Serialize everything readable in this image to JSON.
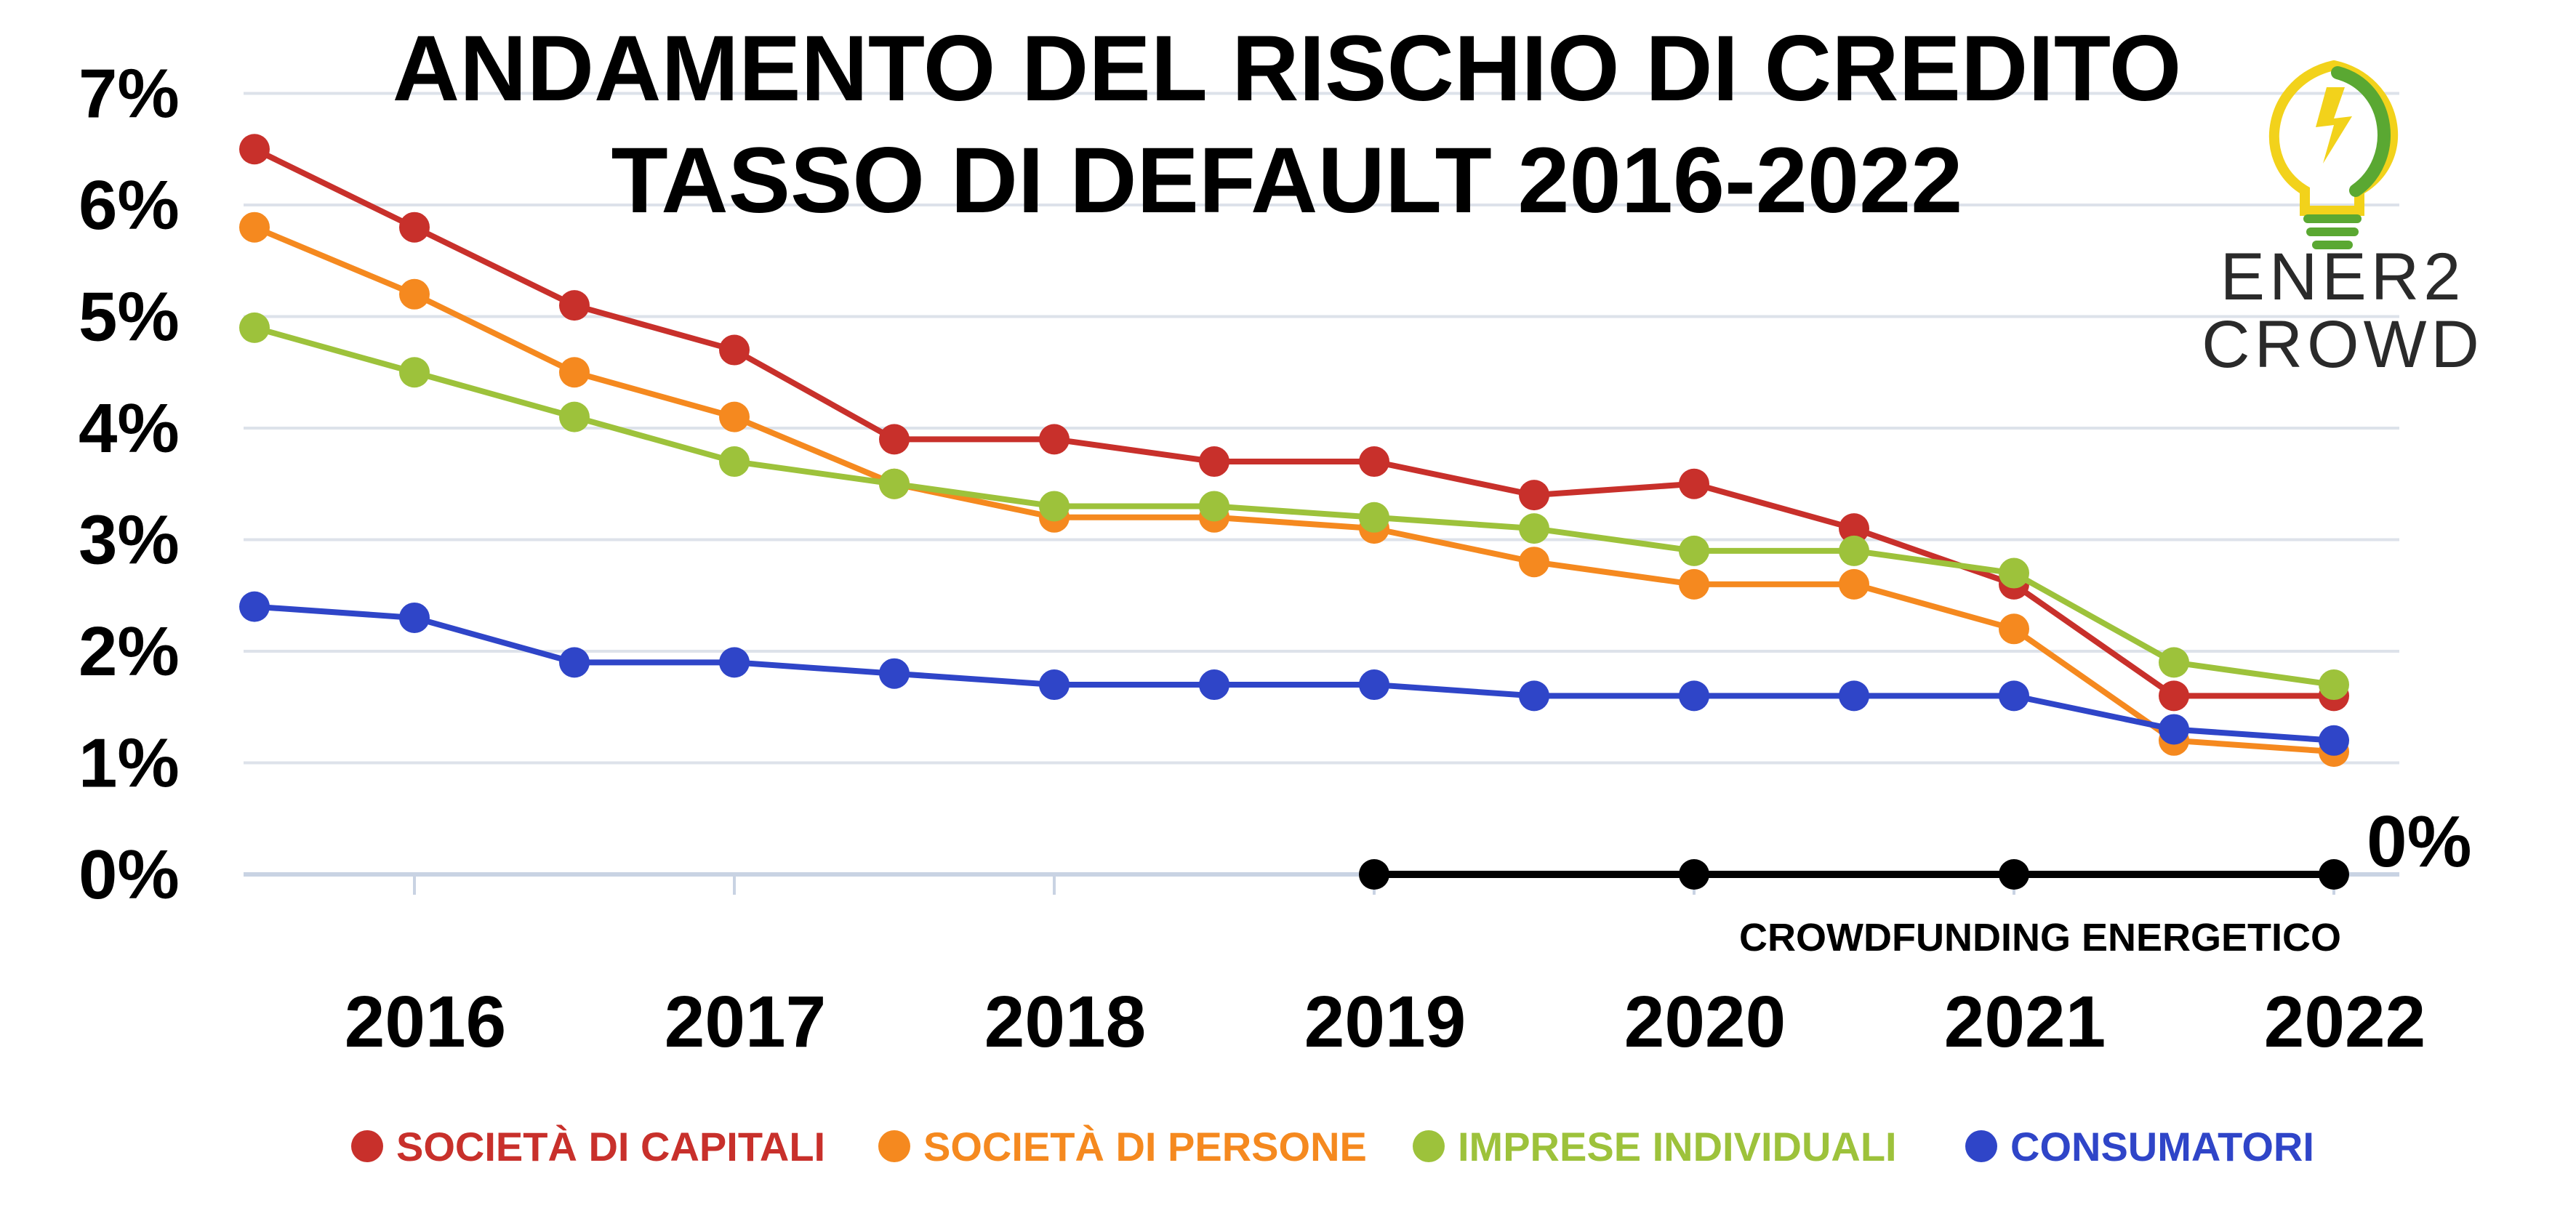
{
  "chart_data": {
    "type": "line",
    "title_line1": "ANDAMENTO DEL RISCHIO DI CREDITO",
    "title_line2": "TASSO DI DEFAULT 2016-2022",
    "y_ticks": [
      "0%",
      "1%",
      "2%",
      "3%",
      "4%",
      "5%",
      "6%",
      "7%"
    ],
    "ylim": [
      0,
      7
    ],
    "x_ticks": [
      "2016",
      "2017",
      "2018",
      "2019",
      "2020",
      "2021",
      "2022"
    ],
    "x": [
      2015.5,
      2016,
      2016.5,
      2017,
      2017.5,
      2018,
      2018.5,
      2019,
      2019.5,
      2020,
      2020.5,
      2021,
      2021.5,
      2022
    ],
    "grid": true,
    "legend_position": "bottom",
    "series": [
      {
        "name": "SOCIETÀ DI CAPITALI",
        "color": "#c8302b",
        "values": [
          6.5,
          5.8,
          5.1,
          4.7,
          3.9,
          3.9,
          3.7,
          3.7,
          3.4,
          3.5,
          3.1,
          2.6,
          1.6,
          1.6
        ]
      },
      {
        "name": "SOCIETÀ DI PERSONE",
        "color": "#f5891f",
        "values": [
          5.8,
          5.2,
          4.5,
          4.1,
          3.5,
          3.2,
          3.2,
          3.1,
          2.8,
          2.6,
          2.6,
          2.2,
          1.2,
          1.1
        ]
      },
      {
        "name": "IMPRESE INDIVIDUALI",
        "color": "#9dc23b",
        "values": [
          4.9,
          4.5,
          4.1,
          3.7,
          3.5,
          3.3,
          3.3,
          3.2,
          3.1,
          2.9,
          2.9,
          2.7,
          1.9,
          1.7
        ]
      },
      {
        "name": "CONSUMATORI",
        "color": "#2f45c8",
        "values": [
          2.4,
          2.3,
          1.9,
          1.9,
          1.8,
          1.7,
          1.7,
          1.7,
          1.6,
          1.6,
          1.6,
          1.6,
          1.3,
          1.2
        ]
      }
    ],
    "crowdfunding": {
      "label": "CROWDFUNDING ENERGETICO",
      "value_label": "0%",
      "x": [
        2019,
        2020,
        2021,
        2022
      ],
      "values": [
        0,
        0,
        0,
        0
      ],
      "color": "#000000"
    }
  },
  "logo": {
    "line1": "ENER2",
    "line2": "CROWD",
    "colors": {
      "yellow": "#f2d21b",
      "green": "#5aa832"
    }
  }
}
